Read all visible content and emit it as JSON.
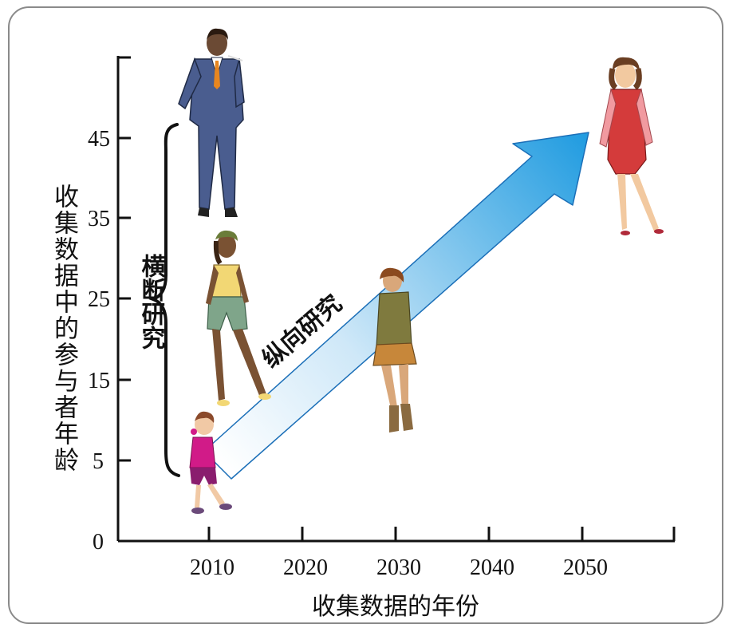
{
  "diagram": {
    "x_axis": {
      "label": "收集数据的年份",
      "ticks": [
        "2010",
        "2020",
        "2030",
        "2040",
        "2050"
      ]
    },
    "y_axis": {
      "label": "收集数据中的参与者年龄",
      "ticks": [
        "0",
        "5",
        "15",
        "25",
        "35",
        "45"
      ]
    },
    "cross_sectional_label": "横断研究",
    "longitudinal_label": "纵向研究",
    "figures": [
      {
        "name": "child-girl-figure",
        "year": 2010,
        "age": 5
      },
      {
        "name": "teen-woman-figure",
        "year": 2010,
        "age": 25
      },
      {
        "name": "adult-man-figure",
        "year": 2010,
        "age": 45
      },
      {
        "name": "young-woman-figure",
        "year": 2030,
        "age": 25
      },
      {
        "name": "adult-woman-figure",
        "year": 2050,
        "age": 45
      }
    ],
    "colors": {
      "arrow_start": "#ffffff",
      "arrow_end": "#1f9be0",
      "arrow_stroke": "#1b6fb8",
      "axis": "#111111",
      "frame": "#8a8a8a"
    }
  }
}
